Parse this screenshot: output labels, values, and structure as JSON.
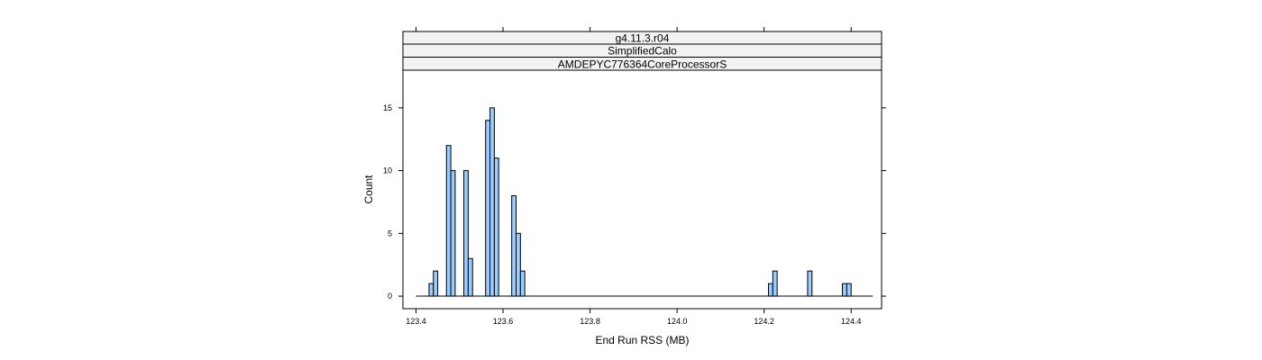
{
  "chart_data": {
    "type": "bar",
    "strips": [
      "g4.11.3.r04",
      "SimplifiedCalo",
      "AMDEPYC776364CoreProcessorS"
    ],
    "xlabel": "End Run RSS (MB)",
    "ylabel": "Count",
    "xlim": [
      123.37,
      124.47
    ],
    "ylim": [
      -1,
      18
    ],
    "xticks": [
      {
        "value": 123.4,
        "label": "123.4"
      },
      {
        "value": 123.6,
        "label": "123.6"
      },
      {
        "value": 123.8,
        "label": "123.8"
      },
      {
        "value": 124.0,
        "label": "124.0"
      },
      {
        "value": 124.2,
        "label": "124.2"
      },
      {
        "value": 124.4,
        "label": "124.4"
      }
    ],
    "yticks": [
      {
        "value": 0,
        "label": "0"
      },
      {
        "value": 5,
        "label": "5"
      },
      {
        "value": 10,
        "label": "10"
      },
      {
        "value": 15,
        "label": "15"
      }
    ],
    "range": [
      123.4,
      124.45
    ],
    "bin_width": 0.01,
    "bins": [
      {
        "x0": 123.43,
        "x1": 123.44,
        "count": 1
      },
      {
        "x0": 123.44,
        "x1": 123.45,
        "count": 2
      },
      {
        "x0": 123.47,
        "x1": 123.48,
        "count": 12
      },
      {
        "x0": 123.48,
        "x1": 123.49,
        "count": 10
      },
      {
        "x0": 123.51,
        "x1": 123.52,
        "count": 10
      },
      {
        "x0": 123.52,
        "x1": 123.53,
        "count": 3
      },
      {
        "x0": 123.56,
        "x1": 123.57,
        "count": 14
      },
      {
        "x0": 123.57,
        "x1": 123.58,
        "count": 15
      },
      {
        "x0": 123.58,
        "x1": 123.59,
        "count": 11
      },
      {
        "x0": 123.62,
        "x1": 123.63,
        "count": 8
      },
      {
        "x0": 123.63,
        "x1": 123.64,
        "count": 5
      },
      {
        "x0": 123.64,
        "x1": 123.65,
        "count": 2
      },
      {
        "x0": 124.21,
        "x1": 124.22,
        "count": 1
      },
      {
        "x0": 124.22,
        "x1": 124.23,
        "count": 2
      },
      {
        "x0": 124.3,
        "x1": 124.31,
        "count": 2
      },
      {
        "x0": 124.38,
        "x1": 124.39,
        "count": 1
      },
      {
        "x0": 124.39,
        "x1": 124.4,
        "count": 1
      }
    ],
    "bar_fill": "#99ccff",
    "bar_stroke": "#000000",
    "strip_fill": "#f2f2f2",
    "grid": false,
    "legend": "none"
  }
}
